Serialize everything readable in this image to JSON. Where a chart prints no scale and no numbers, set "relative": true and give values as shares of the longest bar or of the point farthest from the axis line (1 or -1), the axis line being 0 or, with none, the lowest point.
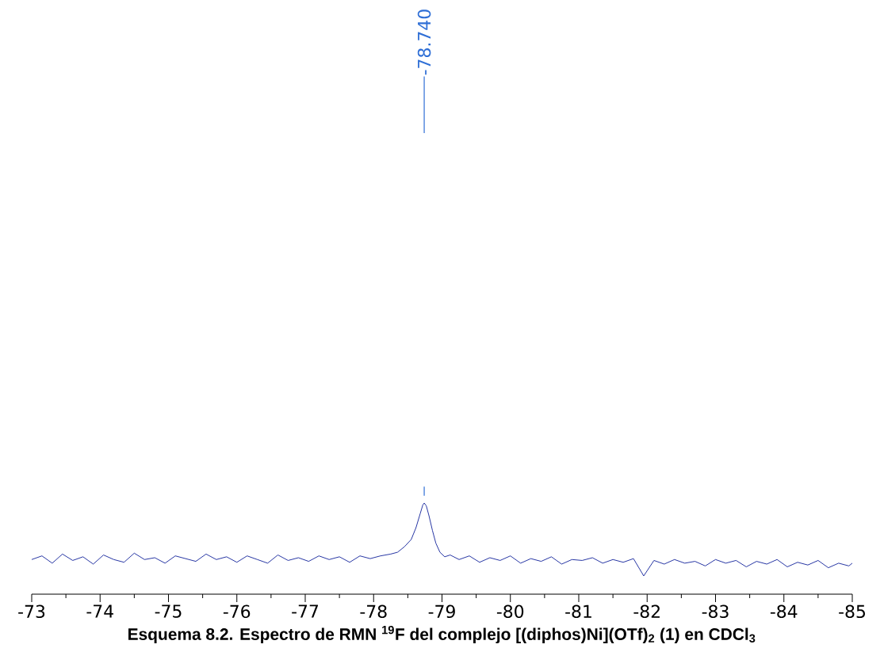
{
  "chart_data": {
    "type": "line",
    "relative": true,
    "title": "**Esquema 8.2. Espectro de RMN $^{19}$F del complejo [(diphos)Ni](OTf)$_{2}$ (1) en CDCl$_{3}$**",
    "x": [
      -73.0,
      -73.15,
      -73.3,
      -73.45,
      -73.6,
      -73.75,
      -73.9,
      -74.05,
      -74.2,
      -74.35,
      -74.5,
      -74.65,
      -74.8,
      -74.95,
      -75.1,
      -75.25,
      -75.4,
      -75.55,
      -75.7,
      -75.85,
      -76.0,
      -76.15,
      -76.3,
      -76.45,
      -76.6,
      -76.75,
      -76.9,
      -77.05,
      -77.2,
      -77.35,
      -77.5,
      -77.65,
      -77.8,
      -77.95,
      -78.1,
      -78.25,
      -78.35,
      -78.45,
      -78.55,
      -78.62,
      -78.68,
      -78.72,
      -78.74,
      -78.77,
      -78.81,
      -78.86,
      -78.91,
      -78.97,
      -79.04,
      -79.12,
      -79.25,
      -79.4,
      -79.55,
      -79.7,
      -79.85,
      -80.0,
      -80.15,
      -80.3,
      -80.45,
      -80.6,
      -80.75,
      -80.9,
      -81.05,
      -81.2,
      -81.35,
      -81.5,
      -81.65,
      -81.8,
      -81.95,
      -82.1,
      -82.25,
      -82.4,
      -82.55,
      -82.7,
      -82.85,
      -83.0,
      -83.15,
      -83.3,
      -83.45,
      -83.6,
      -83.75,
      -83.9,
      -84.05,
      -84.2,
      -84.35,
      -84.5,
      -84.65,
      -84.8,
      -84.95,
      -85.0
    ],
    "values": [
      0.38,
      0.42,
      0.34,
      0.44,
      0.37,
      0.41,
      0.33,
      0.43,
      0.38,
      0.35,
      0.45,
      0.38,
      0.4,
      0.34,
      0.42,
      0.39,
      0.36,
      0.44,
      0.38,
      0.41,
      0.35,
      0.42,
      0.38,
      0.34,
      0.43,
      0.37,
      0.4,
      0.36,
      0.42,
      0.38,
      0.41,
      0.35,
      0.42,
      0.39,
      0.42,
      0.44,
      0.46,
      0.52,
      0.6,
      0.73,
      0.88,
      0.98,
      1.0,
      0.97,
      0.86,
      0.7,
      0.56,
      0.46,
      0.41,
      0.43,
      0.38,
      0.42,
      0.35,
      0.4,
      0.37,
      0.42,
      0.34,
      0.39,
      0.36,
      0.41,
      0.33,
      0.38,
      0.37,
      0.4,
      0.34,
      0.38,
      0.35,
      0.39,
      0.2,
      0.37,
      0.33,
      0.38,
      0.34,
      0.36,
      0.31,
      0.38,
      0.34,
      0.37,
      0.3,
      0.36,
      0.33,
      0.38,
      0.3,
      0.35,
      0.32,
      0.37,
      0.29,
      0.34,
      0.31,
      0.34
    ],
    "color": "#0f1f99",
    "xlim": [
      -73,
      -85
    ],
    "xticks": [
      -73,
      -74,
      -75,
      -76,
      -77,
      -78,
      -79,
      -80,
      -81,
      -82,
      -83,
      -84,
      -85
    ],
    "annotations": [
      "-78.740"
    ]
  }
}
